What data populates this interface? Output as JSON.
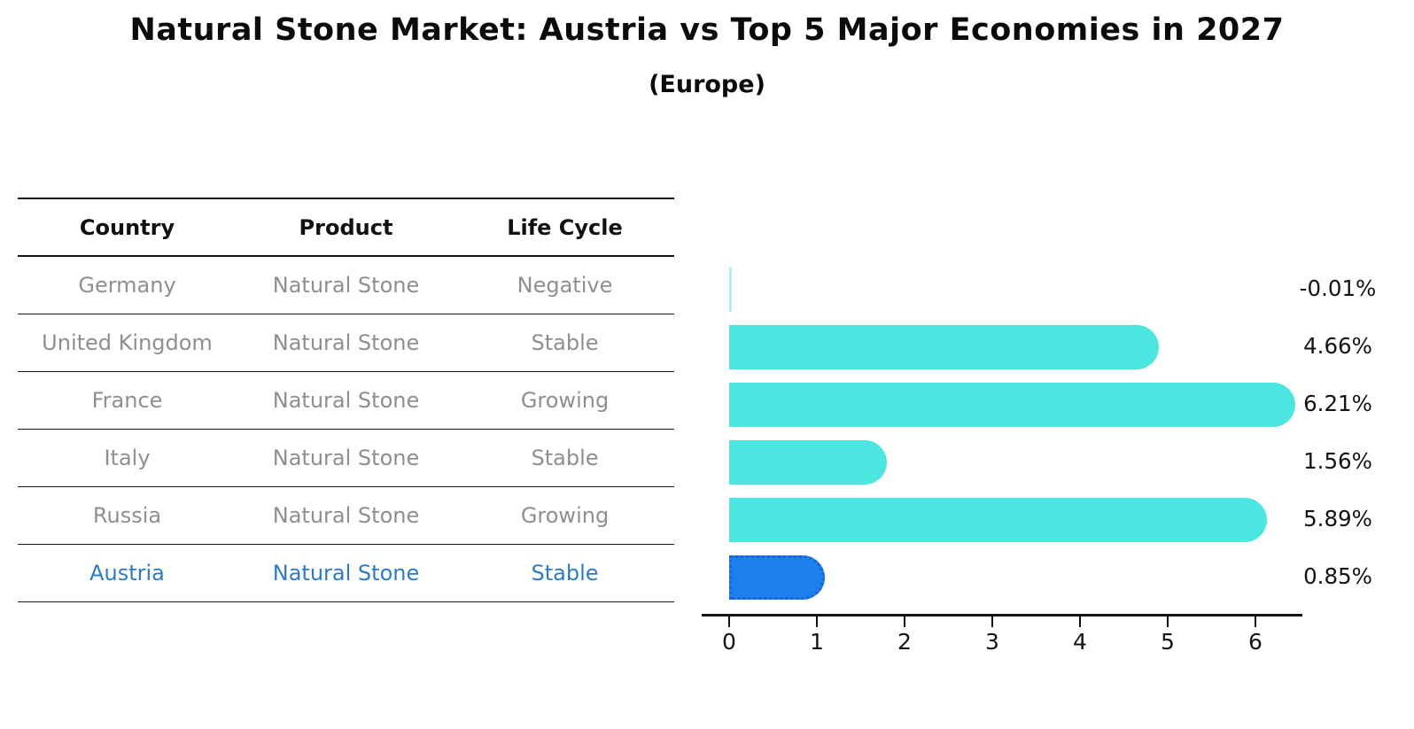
{
  "title": "Natural Stone Market: Austria vs Top 5 Major Economies in 2027",
  "subtitle": "(Europe)",
  "table": {
    "headers": [
      "Country",
      "Product",
      "Life Cycle"
    ],
    "rows": [
      {
        "country": "Germany",
        "product": "Natural Stone",
        "life_cycle": "Negative",
        "highlight": false
      },
      {
        "country": "United Kingdom",
        "product": "Natural Stone",
        "life_cycle": "Stable",
        "highlight": false
      },
      {
        "country": "France",
        "product": "Natural Stone",
        "life_cycle": "Growing",
        "highlight": false
      },
      {
        "country": "Italy",
        "product": "Natural Stone",
        "life_cycle": "Stable",
        "highlight": false
      },
      {
        "country": "Russia",
        "product": "Natural Stone",
        "life_cycle": "Growing",
        "highlight": true
      },
      {
        "country": "Austria",
        "product": "Natural Stone",
        "life_cycle": "Stable",
        "highlight": true
      }
    ]
  },
  "chart_data": {
    "type": "bar",
    "orientation": "horizontal",
    "title": "Natural Stone Market: Austria vs Top 5 Major Economies in 2027",
    "subtitle": "(Europe)",
    "categories": [
      "Germany",
      "United Kingdom",
      "France",
      "Italy",
      "Russia",
      "Austria"
    ],
    "values": [
      -0.01,
      4.66,
      6.21,
      1.56,
      5.89,
      0.85
    ],
    "value_labels": [
      "-0.01%",
      "4.66%",
      "6.21%",
      "1.56%",
      "5.89%",
      "0.85%"
    ],
    "x_ticks": [
      0,
      1,
      2,
      3,
      4,
      5,
      6
    ],
    "xlim": [
      -0.3,
      6.55
    ],
    "grid": false,
    "legend": false,
    "bar_color": "#4be6e0",
    "highlight_bar_color": "#1e80eb",
    "highlight_index": 5,
    "highlight_text_color": "#2e7bc4",
    "xlabel": "",
    "ylabel": ""
  }
}
